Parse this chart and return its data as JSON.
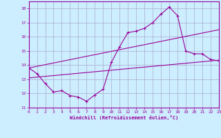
{
  "xlabel": "Windchill (Refroidissement éolien,°C)",
  "bg_color": "#cceeff",
  "line_color": "#990099",
  "grid_color": "#aaaacc",
  "xmin": 0,
  "xmax": 23,
  "ymin": 11,
  "ymax": 18.5,
  "yticks": [
    11,
    12,
    13,
    14,
    15,
    16,
    17,
    18
  ],
  "xticks": [
    0,
    1,
    2,
    3,
    4,
    5,
    6,
    7,
    8,
    9,
    10,
    11,
    12,
    13,
    14,
    15,
    16,
    17,
    18,
    19,
    20,
    21,
    22,
    23
  ],
  "line1_x": [
    0,
    1,
    2,
    3,
    4,
    5,
    6,
    7,
    8,
    9,
    10,
    11,
    12,
    13,
    14,
    15,
    16,
    17,
    18,
    19,
    20,
    21,
    22,
    23
  ],
  "line1_y": [
    13.8,
    13.4,
    12.7,
    12.1,
    12.2,
    11.85,
    11.75,
    11.45,
    11.9,
    12.3,
    14.2,
    15.3,
    16.3,
    16.4,
    16.6,
    17.0,
    17.6,
    18.1,
    17.5,
    15.0,
    14.8,
    14.8,
    14.4,
    14.3
  ],
  "line2_x": [
    0,
    23
  ],
  "line2_y": [
    13.1,
    14.35
  ],
  "line3_x": [
    0,
    23
  ],
  "line3_y": [
    13.8,
    16.5
  ]
}
